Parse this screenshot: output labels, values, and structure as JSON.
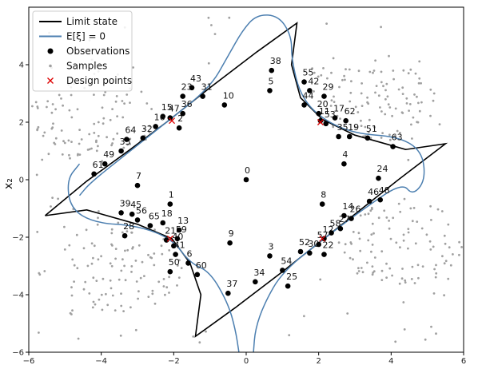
{
  "chart_data": {
    "type": "scatter",
    "ylabel": "x₂",
    "xlim": [
      -6,
      6
    ],
    "ylim": [
      -6,
      6
    ],
    "x_ticks": [
      -6,
      -4,
      -2,
      0,
      2,
      4,
      6
    ],
    "y_ticks": [
      -6,
      -4,
      -2,
      0,
      2,
      4
    ],
    "legend_position": "top-left",
    "legend": [
      {
        "label": "Limit state",
        "kind": "line",
        "color": "#000000"
      },
      {
        "label": "E[ξ] = 0",
        "kind": "line",
        "color": "#4c7fb0"
      },
      {
        "label": "Observations",
        "kind": "dot",
        "color": "#000000"
      },
      {
        "label": "Samples",
        "kind": "smalldot",
        "color": "#a0a0a0"
      },
      {
        "label": "Design points",
        "kind": "cross",
        "color": "#dd0000"
      }
    ],
    "limit_state": [
      [
        -5.55,
        -1.25
      ],
      [
        -4.4,
        -0.05
      ],
      [
        -3.2,
        1.05
      ],
      [
        -2.2,
        2.0
      ],
      [
        -1.0,
        3.2
      ],
      [
        0.3,
        4.45
      ],
      [
        1.4,
        5.45
      ],
      [
        1.25,
        4.0
      ],
      [
        1.5,
        2.85
      ],
      [
        2.1,
        2.1
      ],
      [
        3.0,
        1.55
      ],
      [
        4.4,
        1.05
      ],
      [
        5.5,
        1.25
      ],
      [
        4.2,
        0.0
      ],
      [
        3.1,
        -1.1
      ],
      [
        2.2,
        -2.0
      ],
      [
        1.0,
        -3.2
      ],
      [
        -0.3,
        -4.45
      ],
      [
        -1.4,
        -5.45
      ],
      [
        -1.25,
        -4.0
      ],
      [
        -1.55,
        -2.9
      ],
      [
        -2.05,
        -2.05
      ],
      [
        -3.0,
        -1.55
      ],
      [
        -4.4,
        -1.05
      ],
      [
        -5.55,
        -1.25
      ]
    ],
    "mean_contour": [
      [
        -4.6,
        -0.55
      ],
      [
        -4.3,
        -0.1
      ],
      [
        -3.2,
        1.0
      ],
      [
        -2.2,
        2.0
      ],
      [
        -1.0,
        3.2
      ],
      [
        -0.5,
        4.3
      ],
      [
        -0.1,
        5.2
      ],
      [
        0.3,
        5.75
      ],
      [
        0.9,
        5.7
      ],
      [
        1.25,
        5.0
      ],
      [
        1.25,
        4.2
      ],
      [
        1.5,
        2.9
      ],
      [
        2.1,
        2.1
      ],
      [
        3.0,
        1.6
      ],
      [
        4.2,
        1.5
      ],
      [
        4.85,
        1.0
      ],
      [
        4.95,
        0.0
      ],
      [
        4.6,
        -0.55
      ],
      [
        4.3,
        -0.1
      ],
      [
        3.2,
        -1.05
      ],
      [
        2.2,
        -2.0
      ],
      [
        1.0,
        -3.2
      ],
      [
        0.5,
        -4.3
      ],
      [
        0.25,
        -5.2
      ],
      [
        0.2,
        -6.0
      ]
    ],
    "mean_contour_2": [
      [
        -0.2,
        -6.0
      ],
      [
        -0.3,
        -5.2
      ],
      [
        -0.5,
        -4.3
      ],
      [
        -1.0,
        -3.2
      ],
      [
        -1.55,
        -2.9
      ],
      [
        -2.05,
        -2.05
      ],
      [
        -3.0,
        -1.6
      ],
      [
        -4.2,
        -1.5
      ],
      [
        -4.85,
        -1.0
      ],
      [
        -4.95,
        0.0
      ],
      [
        -4.6,
        0.55
      ]
    ],
    "observations": [
      {
        "id": "0",
        "x": 0.0,
        "y": 0.0
      },
      {
        "id": "1",
        "x": -2.1,
        "y": -0.85
      },
      {
        "id": "2",
        "x": -1.85,
        "y": 1.8
      },
      {
        "id": "3",
        "x": 0.65,
        "y": -2.65
      },
      {
        "id": "4",
        "x": 2.7,
        "y": 0.55
      },
      {
        "id": "5",
        "x": 0.65,
        "y": 3.1
      },
      {
        "id": "6",
        "x": -1.6,
        "y": -2.9
      },
      {
        "id": "7",
        "x": -3.0,
        "y": -0.2
      },
      {
        "id": "8",
        "x": 2.1,
        "y": -0.85
      },
      {
        "id": "9",
        "x": -0.45,
        "y": -2.2
      },
      {
        "id": "10",
        "x": -0.6,
        "y": 2.6
      },
      {
        "id": "11",
        "x": 2.05,
        "y": 2.05
      },
      {
        "id": "12",
        "x": 2.15,
        "y": -2.05
      },
      {
        "id": "13",
        "x": -1.85,
        "y": -1.75
      },
      {
        "id": "14",
        "x": 2.7,
        "y": -1.25
      },
      {
        "id": "15",
        "x": -2.3,
        "y": 2.2
      },
      {
        "id": "16",
        "x": -2.5,
        "y": 1.85
      },
      {
        "id": "17",
        "x": 2.45,
        "y": 2.15
      },
      {
        "id": "18",
        "x": -2.3,
        "y": -1.5
      },
      {
        "id": "19",
        "x": 2.85,
        "y": 1.5
      },
      {
        "id": "20",
        "x": 2.0,
        "y": 2.3
      },
      {
        "id": "21",
        "x": -2.2,
        "y": -2.1
      },
      {
        "id": "22",
        "x": 2.15,
        "y": -2.6
      },
      {
        "id": "23",
        "x": -1.75,
        "y": 2.9
      },
      {
        "id": "24",
        "x": 3.65,
        "y": 0.05
      },
      {
        "id": "25",
        "x": 1.15,
        "y": -3.7
      },
      {
        "id": "26",
        "x": 2.9,
        "y": -1.35
      },
      {
        "id": "27",
        "x": 2.6,
        "y": -1.7
      },
      {
        "id": "28",
        "x": -3.35,
        "y": -1.95
      },
      {
        "id": "29",
        "x": 2.15,
        "y": 2.9
      },
      {
        "id": "30",
        "x": 1.75,
        "y": -2.55
      },
      {
        "id": "31",
        "x": -1.2,
        "y": 2.9
      },
      {
        "id": "32",
        "x": -2.85,
        "y": 1.45
      },
      {
        "id": "33",
        "x": -3.45,
        "y": 1.0
      },
      {
        "id": "34",
        "x": 0.25,
        "y": -3.55
      },
      {
        "id": "35",
        "x": 2.55,
        "y": 1.5
      },
      {
        "id": "36",
        "x": -1.75,
        "y": 2.3
      },
      {
        "id": "37",
        "x": -0.5,
        "y": -3.95
      },
      {
        "id": "38",
        "x": 0.7,
        "y": 3.8
      },
      {
        "id": "39",
        "x": -3.45,
        "y": -1.15
      },
      {
        "id": "40",
        "x": -2.0,
        "y": -2.3
      },
      {
        "id": "41",
        "x": -1.95,
        "y": -2.6
      },
      {
        "id": "42",
        "x": 1.75,
        "y": 3.1
      },
      {
        "id": "43",
        "x": -1.5,
        "y": 3.2
      },
      {
        "id": "44",
        "x": 1.6,
        "y": 2.6
      },
      {
        "id": "45",
        "x": -3.15,
        "y": -1.2
      },
      {
        "id": "46",
        "x": 3.4,
        "y": -0.75
      },
      {
        "id": "47",
        "x": -2.1,
        "y": 2.15
      },
      {
        "id": "48",
        "x": 3.7,
        "y": -0.7
      },
      {
        "id": "49",
        "x": -3.9,
        "y": 0.55
      },
      {
        "id": "50",
        "x": -2.1,
        "y": -3.2
      },
      {
        "id": "51",
        "x": 3.35,
        "y": 1.45
      },
      {
        "id": "52",
        "x": 1.5,
        "y": -2.5
      },
      {
        "id": "53",
        "x": 2.2,
        "y": 1.95
      },
      {
        "id": "54",
        "x": 1.0,
        "y": -3.15
      },
      {
        "id": "55",
        "x": 1.6,
        "y": 3.4
      },
      {
        "id": "56",
        "x": -3.0,
        "y": -1.4
      },
      {
        "id": "57",
        "x": 2.0,
        "y": -2.25
      },
      {
        "id": "58",
        "x": 2.35,
        "y": -1.85
      },
      {
        "id": "59",
        "x": -1.9,
        "y": -2.05
      },
      {
        "id": "60",
        "x": -1.35,
        "y": -3.3
      },
      {
        "id": "61",
        "x": -4.2,
        "y": 0.2
      },
      {
        "id": "62",
        "x": 2.75,
        "y": 2.05
      },
      {
        "id": "63",
        "x": 4.05,
        "y": 1.15
      },
      {
        "id": "64",
        "x": -3.3,
        "y": 1.4
      },
      {
        "id": "65",
        "x": -2.65,
        "y": -1.6
      }
    ],
    "design_points": [
      {
        "x": -2.05,
        "y": 2.05
      },
      {
        "x": 2.05,
        "y": 2.0
      },
      {
        "x": 2.1,
        "y": -2.05
      },
      {
        "x": -2.1,
        "y": -2.05
      }
    ]
  }
}
